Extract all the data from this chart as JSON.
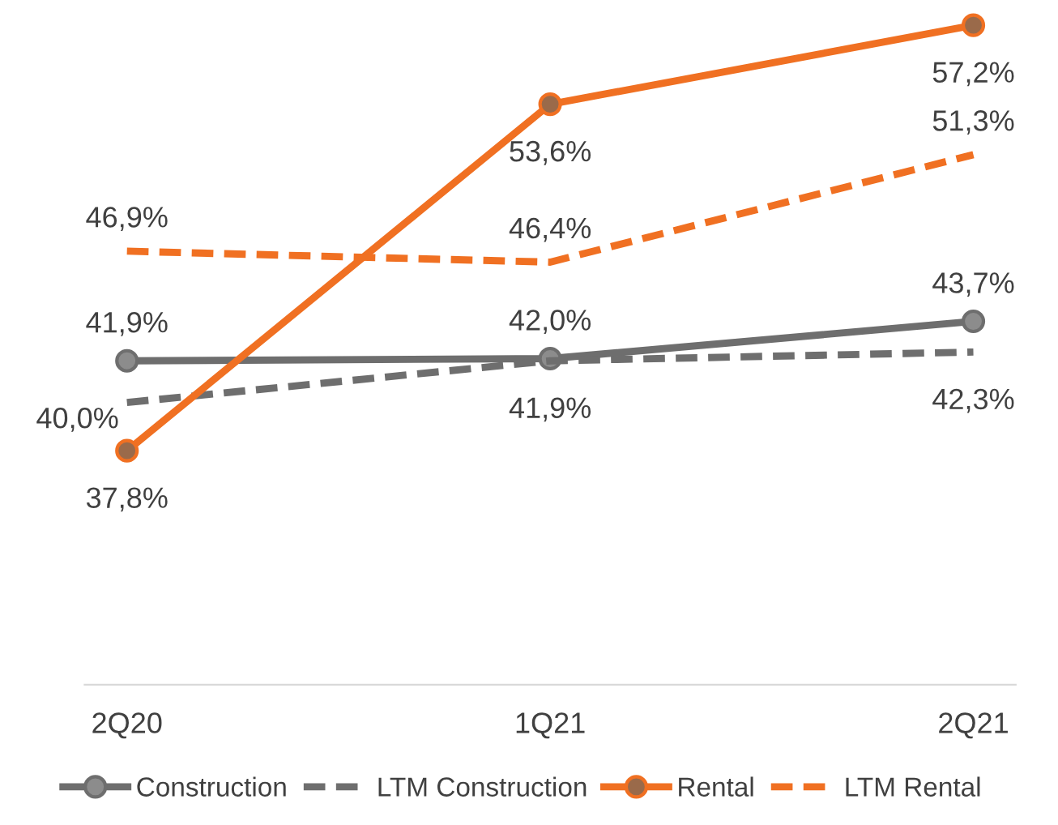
{
  "chart_data": {
    "type": "line",
    "categories": [
      "2Q20",
      "1Q21",
      "2Q21"
    ],
    "series": [
      {
        "name": "Construction",
        "color": "#6e6e6e",
        "values": [
          41.9,
          42.0,
          43.7
        ],
        "value_labels": [
          "41,9%",
          "42,0%",
          "43,7%"
        ],
        "marker": "circle",
        "line_style": "solid"
      },
      {
        "name": "LTM Construction",
        "color": "#6e6e6e",
        "values": [
          40.0,
          41.9,
          42.3
        ],
        "value_labels": [
          "40,0%",
          "41,9%",
          "42,3%"
        ],
        "marker": "none",
        "line_style": "dashed"
      },
      {
        "name": "Rental",
        "color": "#f07022",
        "values": [
          37.8,
          53.6,
          57.2
        ],
        "value_labels": [
          "37,8%",
          "53,6%",
          "57,2%"
        ],
        "marker": "circle",
        "line_style": "solid"
      },
      {
        "name": "LTM Rental",
        "color": "#f07022",
        "values": [
          46.9,
          46.4,
          51.3
        ],
        "value_labels": [
          "46,9%",
          "46,4%",
          "51,3%"
        ],
        "marker": "none",
        "line_style": "dashed"
      }
    ],
    "legend": "bottom",
    "grid": false
  }
}
